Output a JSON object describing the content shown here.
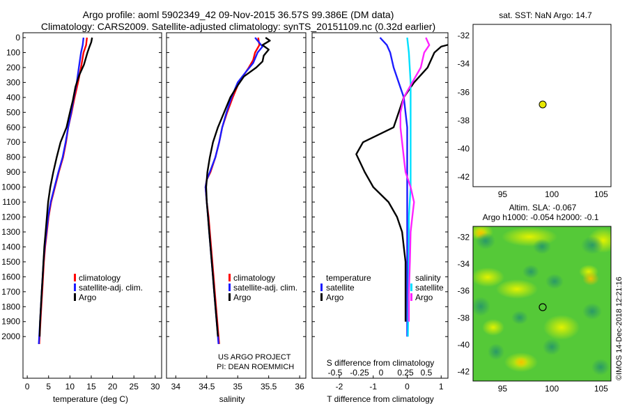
{
  "header": {
    "title_line1": "Argo profile: aoml 5902349_42 09-Nov-2015 36.57S 99.386E (DM data)",
    "title_line2": "Climatology: CARS2009. Satellite-adjusted climatology: synTS_20151109.nc (0.32d earlier)"
  },
  "colors": {
    "climatology": "#ff0000",
    "satellite": "#1c1cff",
    "argo": "#000000",
    "sat_salinity": "#00e0ff",
    "argo_salinity_diff": "#ff22ff",
    "float_marker": "#e8e800"
  },
  "chart_data": [
    {
      "id": "temperature-panel",
      "type": "line",
      "xlabel": "temperature (deg C)",
      "ylabel": "",
      "xlim": [
        -1,
        31.5
      ],
      "ylim": [
        2050,
        0
      ],
      "xticks": [
        0,
        5,
        10,
        15,
        20,
        25,
        30
      ],
      "yticks": [
        0,
        100,
        200,
        300,
        400,
        500,
        600,
        700,
        800,
        900,
        1000,
        1100,
        1200,
        1300,
        1400,
        1500,
        1600,
        1700,
        1800,
        1900,
        2000
      ],
      "legend_entries": [
        "climatology",
        "satellite-adj. clim.",
        "Argo"
      ],
      "series": [
        {
          "name": "climatology",
          "color": "red",
          "points": [
            [
              14.0,
              0
            ],
            [
              13.8,
              50
            ],
            [
              13.2,
              100
            ],
            [
              12.6,
              200
            ],
            [
              11.9,
              300
            ],
            [
              11.1,
              400
            ],
            [
              10.4,
              500
            ],
            [
              9.6,
              600
            ],
            [
              9.1,
              700
            ],
            [
              8.4,
              800
            ],
            [
              7.4,
              900
            ],
            [
              6.5,
              1000
            ],
            [
              5.6,
              1100
            ],
            [
              5.0,
              1200
            ],
            [
              4.6,
              1300
            ],
            [
              4.2,
              1400
            ],
            [
              3.9,
              1500
            ],
            [
              3.7,
              1600
            ],
            [
              3.5,
              1700
            ],
            [
              3.3,
              1800
            ],
            [
              3.1,
              1900
            ],
            [
              2.9,
              2000
            ],
            [
              2.8,
              2050
            ]
          ]
        },
        {
          "name": "satellite-adj. clim.",
          "color": "blue",
          "points": [
            [
              13.2,
              0
            ],
            [
              13.0,
              50
            ],
            [
              12.6,
              100
            ],
            [
              12.1,
              200
            ],
            [
              11.6,
              300
            ],
            [
              10.9,
              400
            ],
            [
              10.3,
              500
            ],
            [
              9.6,
              600
            ],
            [
              9.0,
              700
            ],
            [
              8.3,
              800
            ],
            [
              7.3,
              900
            ],
            [
              6.4,
              1000
            ],
            [
              5.5,
              1100
            ],
            [
              4.9,
              1200
            ],
            [
              4.5,
              1300
            ],
            [
              4.1,
              1400
            ],
            [
              3.8,
              1500
            ],
            [
              3.6,
              1600
            ],
            [
              3.4,
              1700
            ],
            [
              3.2,
              1800
            ],
            [
              3.0,
              1900
            ],
            [
              2.8,
              2000
            ],
            [
              2.7,
              2050
            ]
          ]
        },
        {
          "name": "Argo",
          "color": "black",
          "points": [
            [
              15.2,
              0
            ],
            [
              15.0,
              30
            ],
            [
              14.6,
              60
            ],
            [
              14.1,
              100
            ],
            [
              13.3,
              180
            ],
            [
              12.2,
              250
            ],
            [
              11.3,
              330
            ],
            [
              10.7,
              420
            ],
            [
              10.0,
              500
            ],
            [
              9.2,
              600
            ],
            [
              7.8,
              700
            ],
            [
              6.9,
              800
            ],
            [
              6.1,
              900
            ],
            [
              5.4,
              1000
            ],
            [
              4.9,
              1100
            ],
            [
              4.6,
              1200
            ],
            [
              4.3,
              1300
            ],
            [
              4.0,
              1400
            ],
            [
              3.8,
              1500
            ],
            [
              3.6,
              1600
            ],
            [
              3.4,
              1700
            ],
            [
              3.2,
              1800
            ],
            [
              3.0,
              1900
            ],
            [
              2.9,
              2000
            ]
          ]
        }
      ]
    },
    {
      "id": "salinity-panel",
      "type": "line",
      "xlabel": "salinity",
      "xlim": [
        33.85,
        36.1
      ],
      "ylim": [
        2050,
        0
      ],
      "xticks": [
        34,
        34.5,
        35,
        35.5,
        36
      ],
      "xticklabels": [
        "34",
        "34.5",
        "35",
        "35.5",
        "36"
      ],
      "legend_entries": [
        "climatology",
        "satellite-adj. clim.",
        "Argo"
      ],
      "annotation_line1": "US ARGO PROJECT",
      "annotation_line2": "PI: DEAN ROEMMICH",
      "series": [
        {
          "name": "climatology",
          "color": "red",
          "points": [
            [
              35.33,
              0
            ],
            [
              35.35,
              50
            ],
            [
              35.28,
              100
            ],
            [
              35.25,
              150
            ],
            [
              35.18,
              200
            ],
            [
              35.02,
              300
            ],
            [
              34.92,
              400
            ],
            [
              34.83,
              500
            ],
            [
              34.75,
              600
            ],
            [
              34.7,
              700
            ],
            [
              34.64,
              800
            ],
            [
              34.56,
              900
            ],
            [
              34.5,
              950
            ],
            [
              34.48,
              1000
            ],
            [
              34.5,
              1100
            ],
            [
              34.53,
              1200
            ],
            [
              34.55,
              1300
            ],
            [
              34.57,
              1400
            ],
            [
              34.59,
              1500
            ],
            [
              34.61,
              1600
            ],
            [
              34.63,
              1700
            ],
            [
              34.65,
              1800
            ],
            [
              34.67,
              1900
            ],
            [
              34.69,
              2000
            ],
            [
              34.7,
              2050
            ]
          ]
        },
        {
          "name": "satellite-adj. clim.",
          "color": "blue",
          "points": [
            [
              35.28,
              0
            ],
            [
              35.4,
              60
            ],
            [
              35.32,
              100
            ],
            [
              35.25,
              170
            ],
            [
              35.15,
              220
            ],
            [
              35.0,
              300
            ],
            [
              34.9,
              400
            ],
            [
              34.82,
              500
            ],
            [
              34.75,
              600
            ],
            [
              34.7,
              700
            ],
            [
              34.64,
              800
            ],
            [
              34.55,
              900
            ],
            [
              34.5,
              950
            ],
            [
              34.48,
              1000
            ],
            [
              34.5,
              1100
            ],
            [
              34.52,
              1200
            ],
            [
              34.54,
              1300
            ],
            [
              34.56,
              1400
            ],
            [
              34.58,
              1500
            ],
            [
              34.6,
              1600
            ],
            [
              34.62,
              1700
            ],
            [
              34.64,
              1800
            ],
            [
              34.66,
              1900
            ],
            [
              34.68,
              2000
            ],
            [
              34.69,
              2050
            ]
          ]
        },
        {
          "name": "Argo",
          "color": "black",
          "points": [
            [
              35.45,
              0
            ],
            [
              35.52,
              20
            ],
            [
              35.4,
              50
            ],
            [
              35.5,
              80
            ],
            [
              35.42,
              120
            ],
            [
              35.4,
              160
            ],
            [
              35.3,
              200
            ],
            [
              35.1,
              260
            ],
            [
              35.0,
              320
            ],
            [
              34.88,
              400
            ],
            [
              34.78,
              500
            ],
            [
              34.68,
              600
            ],
            [
              34.6,
              700
            ],
            [
              34.55,
              800
            ],
            [
              34.51,
              900
            ],
            [
              34.49,
              1000
            ],
            [
              34.5,
              1100
            ],
            [
              34.52,
              1200
            ],
            [
              34.54,
              1300
            ],
            [
              34.56,
              1400
            ],
            [
              34.58,
              1500
            ],
            [
              34.6,
              1600
            ],
            [
              34.62,
              1700
            ],
            [
              34.64,
              1800
            ],
            [
              34.66,
              1900
            ],
            [
              34.68,
              2000
            ]
          ]
        }
      ]
    },
    {
      "id": "difference-panel",
      "type": "line",
      "xlabel": "T difference from climatology",
      "top_axis_label": "S difference from climatology",
      "xlim": [
        -2.8,
        1.2
      ],
      "ylim": [
        2050,
        0
      ],
      "xticks": [
        -2,
        -1,
        0,
        1
      ],
      "xticklabels": [
        "-2",
        "-1",
        "0",
        "1"
      ],
      "s_ticklabels": [
        "-0.5",
        "-0.25",
        "0",
        "0.25",
        "0.5"
      ],
      "legend_temperature_heading": "temperature",
      "legend_salinity_heading": "salinity",
      "legend_entries": [
        "satellite",
        "Argo"
      ],
      "series": [
        {
          "name": "temperature satellite",
          "color": "blue",
          "points": [
            [
              -0.8,
              0
            ],
            [
              -0.6,
              50
            ],
            [
              -0.5,
              100
            ],
            [
              -0.4,
              200
            ],
            [
              -0.25,
              300
            ],
            [
              -0.1,
              400
            ],
            [
              0.0,
              600
            ],
            [
              0.0,
              1000
            ],
            [
              0.0,
              2000
            ]
          ]
        },
        {
          "name": "temperature Argo",
          "color": "black",
          "points": [
            [
              1.2,
              0
            ],
            [
              1.5,
              30
            ],
            [
              1.0,
              60
            ],
            [
              0.8,
              100
            ],
            [
              0.6,
              200
            ],
            [
              0.2,
              300
            ],
            [
              -0.1,
              400
            ],
            [
              -0.4,
              600
            ],
            [
              -1.3,
              700
            ],
            [
              -1.5,
              780
            ],
            [
              -1.25,
              900
            ],
            [
              -1.0,
              1000
            ],
            [
              -0.55,
              1100
            ],
            [
              -0.3,
              1200
            ],
            [
              -0.15,
              1300
            ],
            [
              -0.1,
              1400
            ],
            [
              -0.05,
              1500
            ],
            [
              -0.05,
              1600
            ],
            [
              -0.05,
              1700
            ],
            [
              -0.05,
              1800
            ],
            [
              -0.05,
              1900
            ]
          ]
        },
        {
          "name": "salinity satellite",
          "color": "cyan",
          "points": [
            [
              0.0,
              0
            ],
            [
              0.05,
              100
            ],
            [
              0.1,
              300
            ],
            [
              0.1,
              500
            ],
            [
              0.1,
              800
            ],
            [
              0.1,
              1000
            ],
            [
              0.05,
              1200
            ],
            [
              0.05,
              1500
            ],
            [
              0.02,
              2000
            ]
          ]
        },
        {
          "name": "salinity Argo",
          "color": "magenta",
          "points": [
            [
              0.55,
              0
            ],
            [
              0.65,
              50
            ],
            [
              0.5,
              100
            ],
            [
              0.4,
              200
            ],
            [
              0.15,
              300
            ],
            [
              -0.1,
              400
            ],
            [
              -0.2,
              500
            ],
            [
              -0.2,
              600
            ],
            [
              -0.15,
              700
            ],
            [
              -0.1,
              800
            ],
            [
              -0.05,
              900
            ],
            [
              0.1,
              1000
            ],
            [
              0.2,
              1100
            ],
            [
              0.15,
              1200
            ],
            [
              0.1,
              1300
            ],
            [
              0.08,
              1500
            ],
            [
              0.05,
              1700
            ],
            [
              0.05,
              1900
            ]
          ]
        }
      ]
    },
    {
      "id": "sst-map",
      "type": "scatter",
      "title": "sat. SST: NaN Argo: 14.7",
      "xlim": [
        92,
        106
      ],
      "ylim": [
        -42.7,
        -31.2
      ],
      "xticks": [
        95,
        100,
        105
      ],
      "yticks": [
        -32,
        -34,
        -36,
        -38,
        -40,
        -42
      ],
      "marker": {
        "lon": 99.386,
        "lat": -36.57
      }
    },
    {
      "id": "sla-map",
      "type": "heatmap",
      "title_line1": "Altim. SLA: -0.067",
      "title_line2": "Argo h1000: -0.054 h2000: -0.1",
      "xlim": [
        92,
        106
      ],
      "ylim": [
        -42.7,
        -31.2
      ],
      "xticks": [
        95,
        100,
        105
      ],
      "yticks": [
        -32,
        -34,
        -36,
        -38,
        -40,
        -42
      ],
      "marker": {
        "lon": 99.386,
        "lat": -36.57
      }
    }
  ],
  "footer": {
    "credit": "©IMOS 14-Dec-2018 12:21:16"
  }
}
